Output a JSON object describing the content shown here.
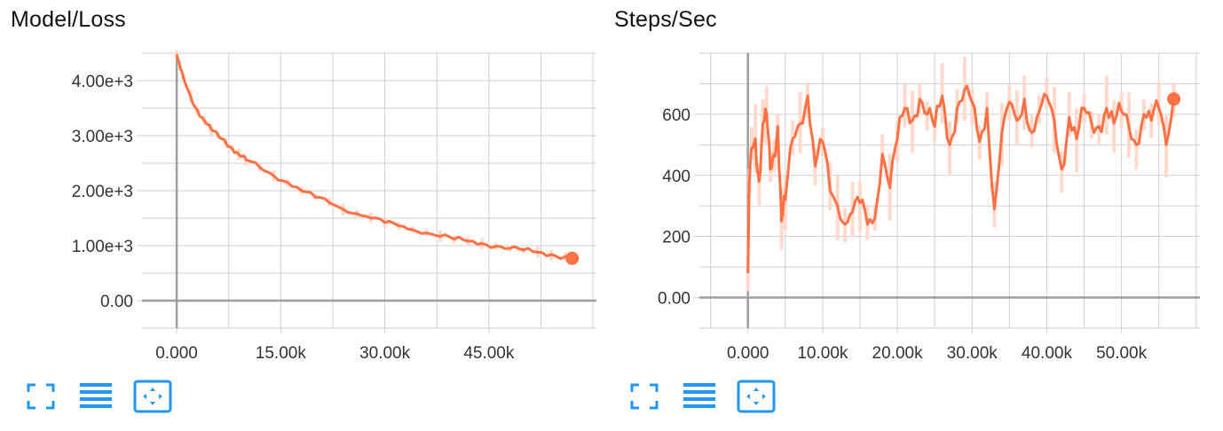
{
  "colors": {
    "series_line": "#ff7043",
    "series_raw": "#ffd9cc",
    "grid": "#cfcfcf",
    "axis_zero": "#9e9e9e",
    "tick_text": "#333333",
    "toolbar_icon": "#2196f3"
  },
  "toolbar_icons": [
    "fullscreen-icon",
    "data-table-icon",
    "fit-domain-icon"
  ],
  "chart_data": [
    {
      "type": "line",
      "title": "Model/Loss",
      "xlabel": "",
      "ylabel": "",
      "x_ticks": [
        "0.000",
        "15.00k",
        "30.00k",
        "45.00k"
      ],
      "y_ticks": [
        "0.00",
        "1.00e+3",
        "2.00e+3",
        "3.00e+3",
        "4.00e+3"
      ],
      "xlim": [
        -5000,
        60500
      ],
      "ylim": [
        -500,
        4500
      ],
      "grid": true,
      "series": [
        {
          "x": [
            0,
            500,
            1000,
            2000,
            3000,
            4000,
            5000,
            6000,
            7000,
            8000,
            9000,
            10000,
            12000,
            14000,
            16000,
            18000,
            20000,
            22000,
            24000,
            26000,
            28000,
            30000,
            32000,
            34000,
            36000,
            38000,
            40000,
            42000,
            44000,
            46000,
            48000,
            50000,
            52000,
            54000,
            56000,
            57000
          ],
          "y": [
            4480,
            4240,
            4040,
            3720,
            3460,
            3270,
            3110,
            3000,
            2900,
            2770,
            2650,
            2560,
            2420,
            2270,
            2150,
            2000,
            1880,
            1780,
            1660,
            1580,
            1500,
            1420,
            1360,
            1290,
            1230,
            1170,
            1120,
            1080,
            1040,
            990,
            950,
            920,
            880,
            840,
            800,
            770
          ]
        }
      ]
    },
    {
      "type": "line",
      "title": "Steps/Sec",
      "xlabel": "",
      "ylabel": "",
      "x_ticks": [
        "0.000",
        "10.00k",
        "20.00k",
        "30.00k",
        "40.00k",
        "50.00k"
      ],
      "y_ticks": [
        "0.00",
        "200",
        "400",
        "600"
      ],
      "xlim": [
        -6500,
        60500
      ],
      "ylim": [
        -100,
        800
      ],
      "grid": true,
      "series": [
        {
          "x": [
            0,
            200,
            500,
            1000,
            1500,
            2000,
            2500,
            3000,
            3500,
            4000,
            4500,
            5000,
            6000,
            7000,
            8000,
            9000,
            10000,
            11000,
            12000,
            13000,
            14000,
            15000,
            16000,
            17000,
            18000,
            19000,
            20000,
            21000,
            22000,
            23000,
            24000,
            25000,
            26000,
            27000,
            28000,
            29000,
            30000,
            31000,
            32000,
            33000,
            34000,
            35000,
            36000,
            37000,
            38000,
            39000,
            40000,
            41000,
            42000,
            43000,
            44000,
            45000,
            46000,
            47000,
            48000,
            49000,
            50000,
            51000,
            52000,
            53000,
            54000,
            55000,
            56000,
            57000
          ],
          "y": [
            80,
            380,
            490,
            520,
            380,
            570,
            600,
            420,
            470,
            560,
            250,
            320,
            520,
            570,
            660,
            430,
            510,
            350,
            300,
            240,
            280,
            310,
            240,
            260,
            470,
            360,
            520,
            620,
            580,
            650,
            600,
            560,
            660,
            500,
            620,
            680,
            640,
            510,
            620,
            290,
            540,
            640,
            580,
            650,
            540,
            610,
            660,
            580,
            420,
            590,
            520,
            620,
            570,
            560,
            620,
            570,
            610,
            560,
            500,
            600,
            580,
            620,
            500,
            650
          ]
        }
      ]
    }
  ]
}
